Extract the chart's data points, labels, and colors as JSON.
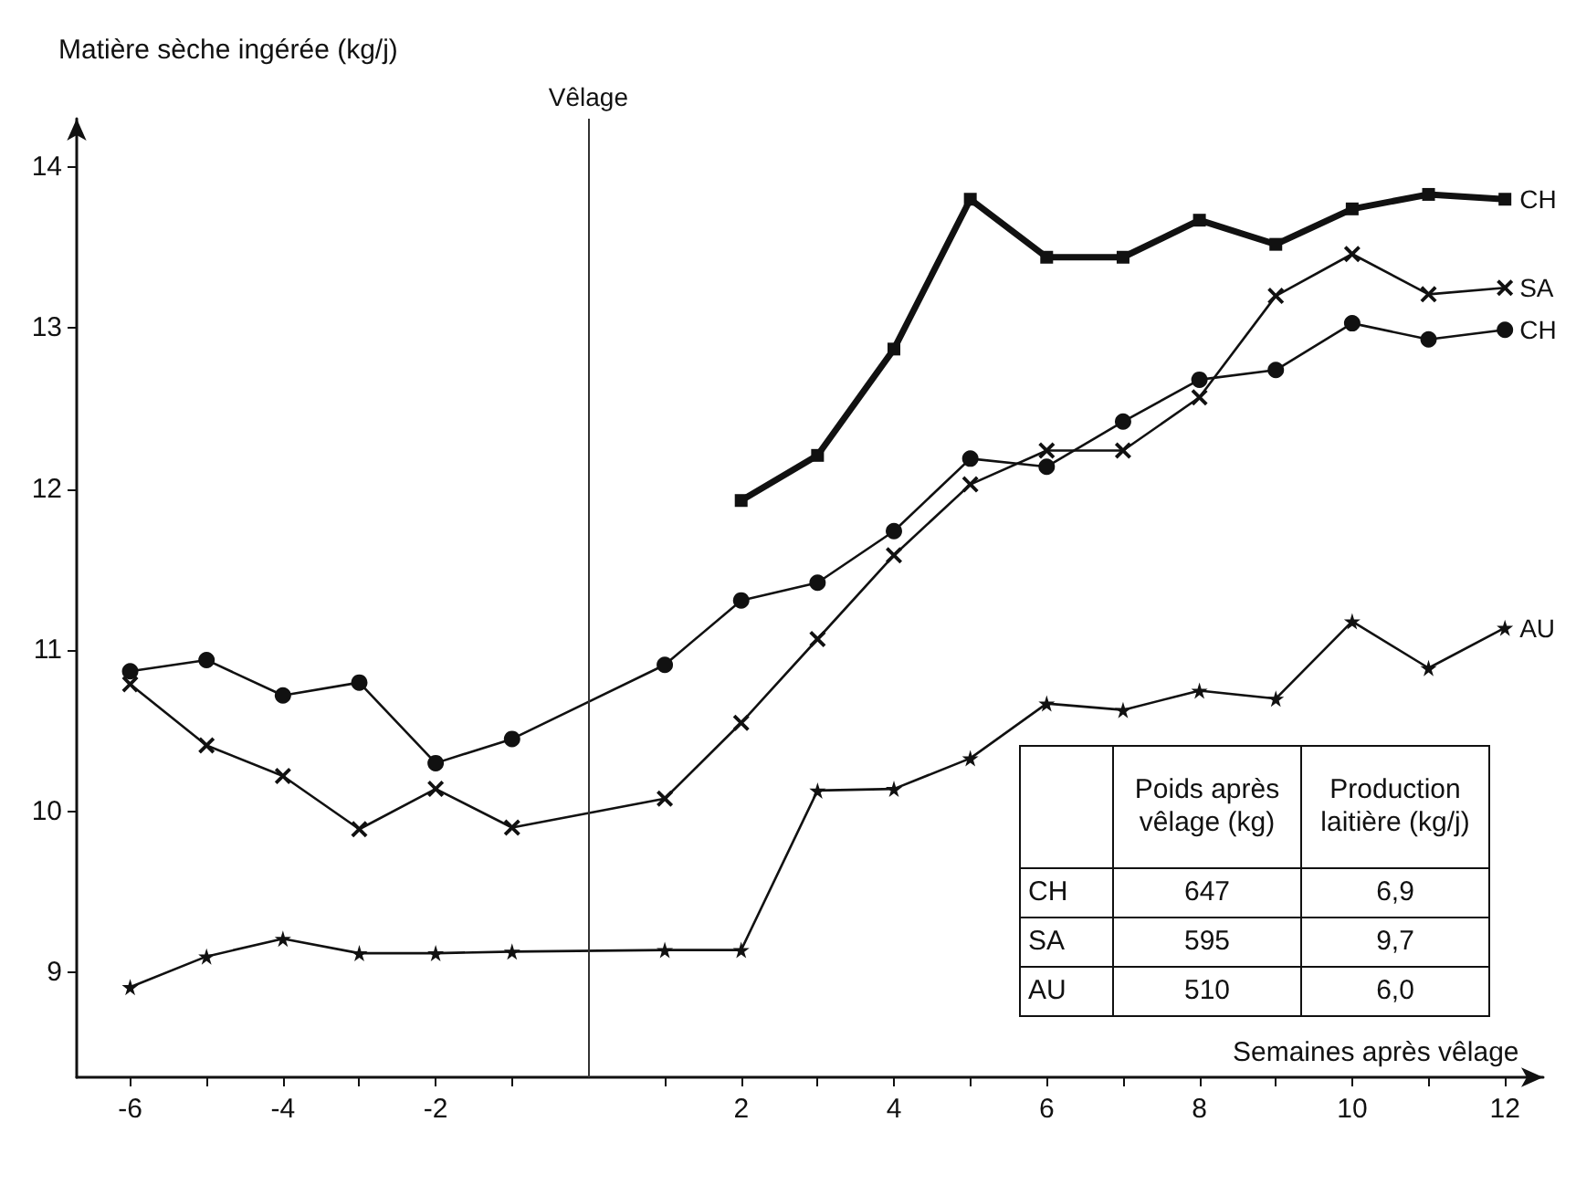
{
  "chart_data": {
    "type": "line",
    "xlabel": "Semaines après vêlage",
    "ylabel": "Matière sèche ingérée (kg/j)",
    "xlim": [
      -6.7,
      12.5
    ],
    "ylim": [
      8.35,
      14.3
    ],
    "xticks": [
      -6,
      {
        "value": -5,
        "label": null
      },
      -4,
      {
        "value": -3,
        "label": null
      },
      -2,
      {
        "value": -1,
        "label": null
      },
      {
        "value": 1,
        "label": null
      },
      2,
      {
        "value": 3,
        "label": null
      },
      4,
      {
        "value": 5,
        "label": null
      },
      6,
      {
        "value": 7,
        "label": null
      },
      8,
      {
        "value": 9,
        "label": null
      },
      10,
      {
        "value": 11,
        "label": null
      },
      12
    ],
    "yticks": [
      9,
      10,
      11,
      12,
      13,
      14
    ],
    "grid": false,
    "legend": false,
    "series": [
      {
        "name": "CH",
        "color": "#111111",
        "marker": "square",
        "x": [
          2,
          3,
          4,
          5,
          6,
          7,
          8,
          9,
          10,
          11,
          12
        ],
        "values": [
          11.93,
          12.21,
          12.87,
          13.8,
          13.44,
          13.44,
          13.67,
          13.52,
          13.74,
          13.83,
          13.8
        ]
      },
      {
        "name": "SA",
        "color": "#111111",
        "marker": "cross",
        "x": [
          -6,
          -5,
          -4,
          -3,
          -2,
          -1,
          1,
          2,
          3,
          4,
          5,
          6,
          7,
          8,
          9,
          10,
          11,
          12
        ],
        "values": [
          10.79,
          10.41,
          10.22,
          9.89,
          10.14,
          9.9,
          10.08,
          10.55,
          11.07,
          11.59,
          12.03,
          12.24,
          12.24,
          12.57,
          13.2,
          13.46,
          13.21,
          13.25
        ]
      },
      {
        "name": "CH",
        "color": "#111111",
        "marker": "circle",
        "x": [
          -6,
          -5,
          -4,
          -3,
          -2,
          -1,
          1,
          2,
          3,
          4,
          5,
          6,
          7,
          8,
          9,
          10,
          11,
          12
        ],
        "values": [
          10.87,
          10.94,
          10.72,
          10.8,
          10.3,
          10.45,
          10.91,
          11.31,
          11.42,
          11.74,
          12.19,
          12.14,
          12.42,
          12.68,
          12.74,
          13.03,
          12.93,
          12.99
        ]
      },
      {
        "name": "AU",
        "color": "#111111",
        "marker": "star",
        "x": [
          -6,
          -5,
          -4,
          -3,
          -2,
          -1,
          1,
          2,
          3,
          4,
          5,
          6,
          7,
          8,
          9,
          10,
          11,
          12
        ],
        "values": [
          8.91,
          9.1,
          9.21,
          9.12,
          9.12,
          9.13,
          9.14,
          9.14,
          10.13,
          10.14,
          10.33,
          10.67,
          10.63,
          10.75,
          10.7,
          11.18,
          10.89,
          11.14
        ]
      }
    ],
    "ref_lines": [
      {
        "axis": "x",
        "value": 0,
        "label": "Vêlage",
        "color": "#333333",
        "line_style": "solid"
      }
    ],
    "annotations": [
      "Poids après vêlage (kg)",
      "Production laitière (kg/j)",
      "CH",
      "647",
      "6,9",
      "SA",
      "595",
      "9,7",
      "AU",
      "510",
      "6,0"
    ]
  }
}
